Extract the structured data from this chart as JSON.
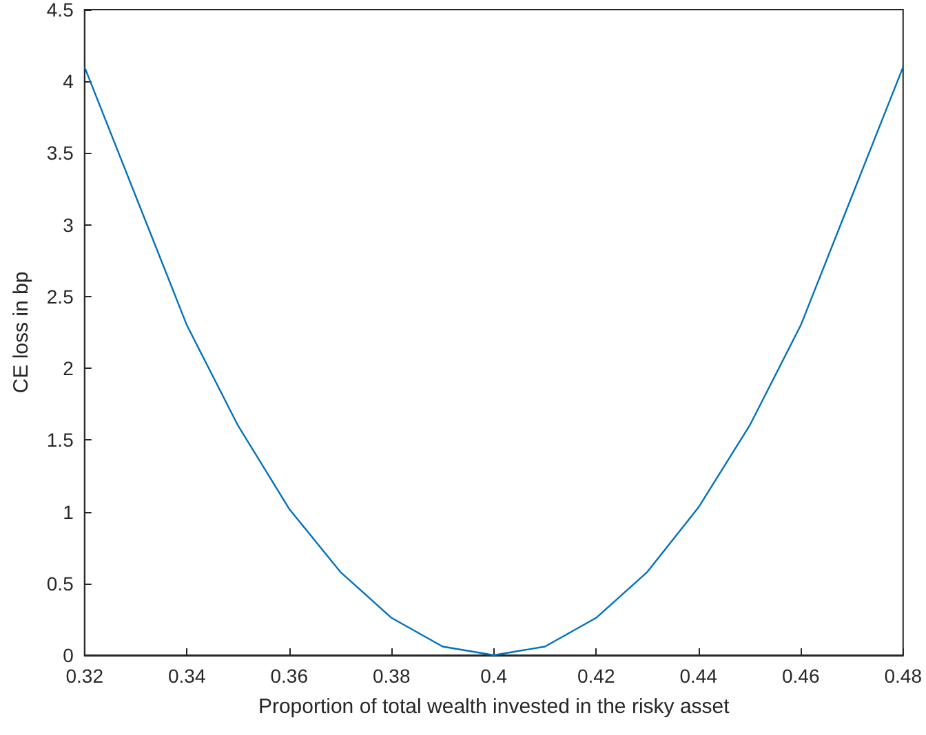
{
  "chart_data": {
    "type": "line",
    "xlabel": "Proportion of total wealth invested in the risky asset",
    "ylabel": "CE loss in bp",
    "x": [
      0.32,
      0.33,
      0.34,
      0.35,
      0.36,
      0.37,
      0.38,
      0.39,
      0.4,
      0.41,
      0.42,
      0.43,
      0.44,
      0.45,
      0.46,
      0.47,
      0.48
    ],
    "series": [
      {
        "color": "#0072bd",
        "values": [
          4.1,
          3.2,
          2.3,
          1.6,
          1.02,
          0.58,
          0.26,
          0.06,
          0,
          0.06,
          0.26,
          0.58,
          1.03,
          1.6,
          2.3,
          3.2,
          4.1
        ]
      }
    ],
    "xlim": [
      0.32,
      0.48
    ],
    "xticks": [
      0.32,
      0.34,
      0.36,
      0.38,
      0.4,
      0.42,
      0.44,
      0.46,
      0.48
    ],
    "ylim": [
      0,
      4.5
    ],
    "yticks": [
      0,
      0.5,
      1,
      1.5,
      2,
      2.5,
      3,
      3.5,
      4,
      4.5
    ],
    "grid": false,
    "marker": "none",
    "line_style": "solid"
  }
}
